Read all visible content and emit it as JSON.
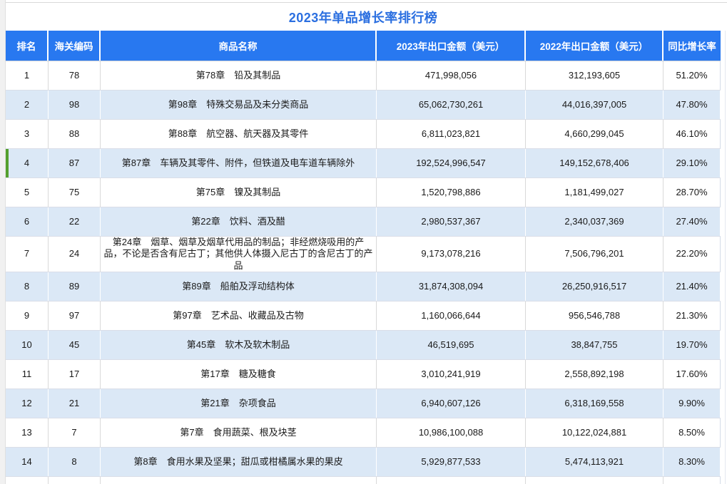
{
  "title": "2023年单品增长率排行榜",
  "colors": {
    "header_bg": "#2878f0",
    "header_text": "#ffffff",
    "title_color": "#2b6fe0",
    "stripe_bg": "#dbe8f6",
    "row_border": "#dadee8",
    "grid_grey": "#d9d9d9",
    "gutter_bg": "#f1f1f1",
    "green_marker": "#54a02d"
  },
  "table": {
    "headers": [
      "排名",
      "海关编码",
      "商品名称",
      "2023年出口金额（美元）",
      "2022年出口金额（美元）",
      "同比增长率"
    ],
    "rows": [
      {
        "rank": "1",
        "code": "78",
        "name": "第78章　铅及其制品",
        "amount_2023": "471,998,056",
        "amount_2022": "312,193,605",
        "growth": "51.20%"
      },
      {
        "rank": "2",
        "code": "98",
        "name": "第98章　特殊交易品及未分类商品",
        "amount_2023": "65,062,730,261",
        "amount_2022": "44,016,397,005",
        "growth": "47.80%"
      },
      {
        "rank": "3",
        "code": "88",
        "name": "第88章　航空器、航天器及其零件",
        "amount_2023": "6,811,023,821",
        "amount_2022": "4,660,299,045",
        "growth": "46.10%"
      },
      {
        "rank": "4",
        "code": "87",
        "name": "第87章　车辆及其零件、附件，但铁道及电车道车辆除外",
        "amount_2023": "192,524,996,547",
        "amount_2022": "149,152,678,406",
        "growth": "29.10%",
        "marker": true
      },
      {
        "rank": "5",
        "code": "75",
        "name": "第75章　镍及其制品",
        "amount_2023": "1,520,798,886",
        "amount_2022": "1,181,499,027",
        "growth": "28.70%"
      },
      {
        "rank": "6",
        "code": "22",
        "name": "第22章　饮料、酒及醋",
        "amount_2023": "2,980,537,367",
        "amount_2022": "2,340,037,369",
        "growth": "27.40%"
      },
      {
        "rank": "7",
        "code": "24",
        "name": "第24章　烟草、烟草及烟草代用品的制品；非经燃烧吸用的产品，不论是否含有尼古丁；其他供人体摄入尼古丁的含尼古丁的产品",
        "amount_2023": "9,173,078,216",
        "amount_2022": "7,506,796,201",
        "growth": "22.20%"
      },
      {
        "rank": "8",
        "code": "89",
        "name": "第89章　船舶及浮动结构体",
        "amount_2023": "31,874,308,094",
        "amount_2022": "26,250,916,517",
        "growth": "21.40%"
      },
      {
        "rank": "9",
        "code": "97",
        "name": "第97章　艺术品、收藏品及古物",
        "amount_2023": "1,160,066,644",
        "amount_2022": "956,546,788",
        "growth": "21.30%"
      },
      {
        "rank": "10",
        "code": "45",
        "name": "第45章　软木及软木制品",
        "amount_2023": "46,519,695",
        "amount_2022": "38,847,755",
        "growth": "19.70%"
      },
      {
        "rank": "11",
        "code": "17",
        "name": "第17章　糖及糖食",
        "amount_2023": "3,010,241,919",
        "amount_2022": "2,558,892,198",
        "growth": "17.60%"
      },
      {
        "rank": "12",
        "code": "21",
        "name": "第21章　杂项食品",
        "amount_2023": "6,940,607,126",
        "amount_2022": "6,318,169,558",
        "growth": "9.90%"
      },
      {
        "rank": "13",
        "code": "7",
        "name": "第7章　食用蔬菜、根及块茎",
        "amount_2023": "10,986,100,088",
        "amount_2022": "10,122,024,881",
        "growth": "8.50%"
      },
      {
        "rank": "14",
        "code": "8",
        "name": "第8章　食用水果及坚果；甜瓜或柑橘属水果的果皮",
        "amount_2023": "5,929,877,533",
        "amount_2022": "5,474,113,921",
        "growth": "8.30%"
      }
    ]
  }
}
